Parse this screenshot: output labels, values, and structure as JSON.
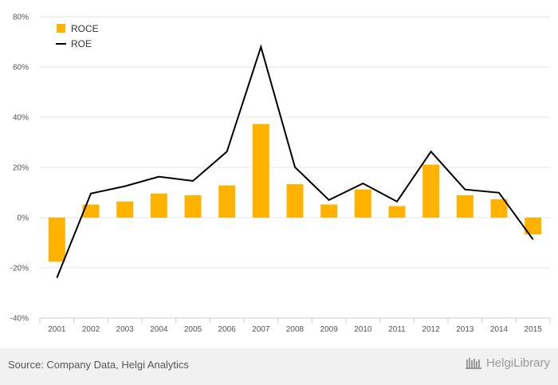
{
  "chart_data": {
    "type": "bar",
    "categories": [
      "2001",
      "2002",
      "2003",
      "2004",
      "2005",
      "2006",
      "2007",
      "2008",
      "2009",
      "2010",
      "2011",
      "2012",
      "2013",
      "2014",
      "2015"
    ],
    "series": [
      {
        "name": "ROCE",
        "type": "bar",
        "color": "#FFB300",
        "values": [
          -17.6,
          5.2,
          6.4,
          9.6,
          8.9,
          12.8,
          37.3,
          13.3,
          5.2,
          11.2,
          4.6,
          21.1,
          8.9,
          7.3,
          -6.7
        ]
      },
      {
        "name": "ROE",
        "type": "line",
        "color": "#000000",
        "values": [
          -24.0,
          9.6,
          12.5,
          16.3,
          14.6,
          26.3,
          68.0,
          20.1,
          7.0,
          13.6,
          6.4,
          26.3,
          11.2,
          9.9,
          -8.7
        ]
      }
    ],
    "ylim": [
      -40,
      80
    ],
    "yticks": [
      -40,
      -20,
      0,
      20,
      40,
      60,
      80
    ],
    "ytick_suffix": "%",
    "xlabel": "",
    "ylabel": "",
    "title": "",
    "grid": true,
    "legend": "top-left"
  },
  "footer": {
    "source": "Source: Company Data, Helgi Analytics",
    "brand": "HelgiLibrary"
  }
}
